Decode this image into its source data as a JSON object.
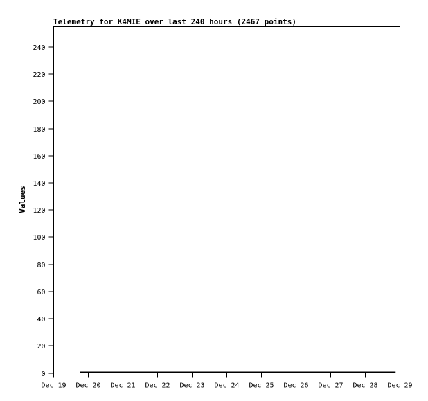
{
  "chart_data": {
    "type": "line",
    "title": "Telemetry for K4MIE over last 240 hours (2467 points)",
    "xlabel": "",
    "ylabel": "Values",
    "ylim": [
      0,
      255
    ],
    "yticks": [
      0,
      20,
      40,
      60,
      80,
      100,
      120,
      140,
      160,
      180,
      200,
      220,
      240
    ],
    "xticks": [
      "Dec 19",
      "Dec 20",
      "Dec 21",
      "Dec 22",
      "Dec 23",
      "Dec 24",
      "Dec 25",
      "Dec 26",
      "Dec 27",
      "Dec 28",
      "Dec 29"
    ],
    "xlim": [
      "Dec 19 00:00",
      "Dec 29 00:00"
    ],
    "grid": false,
    "series": [
      {
        "color": "#000000",
        "x": [
          "Dec 19 18:00",
          "Dec 28 21:00"
        ],
        "values": [
          0,
          0
        ]
      }
    ]
  }
}
